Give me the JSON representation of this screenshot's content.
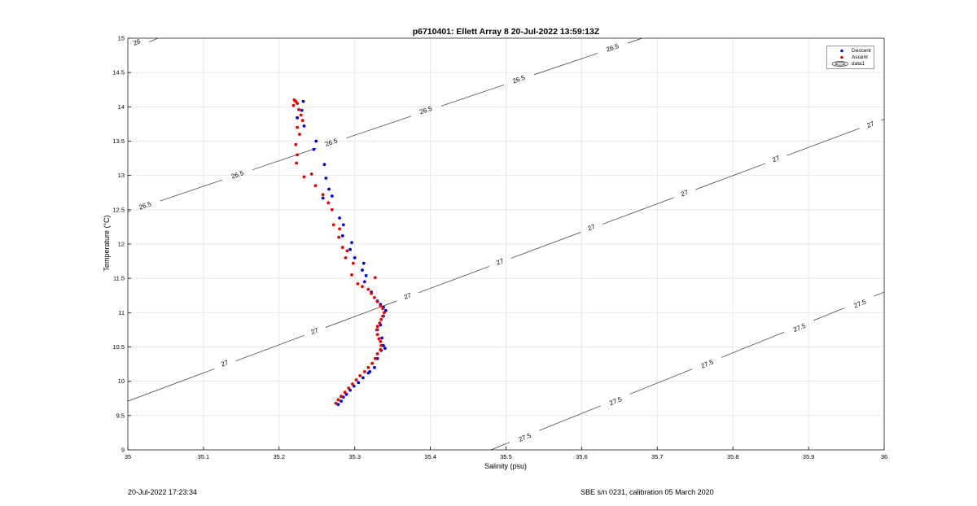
{
  "header": {
    "title": "p6710401: Ellett Array 8 20-Jul-2022 13:59:13Z"
  },
  "footer": {
    "left": "20-Jul-2022 17:23:34",
    "right": "SBE s/n 0231, calibration 05 March 2020"
  },
  "colors": {
    "descent": "#0000cc",
    "ascent": "#e00000",
    "contour": "#333333",
    "grid": "#e3e3e3"
  },
  "chart_data": {
    "type": "scatter",
    "title": "p6710401: Ellett Array 8 20-Jul-2022 13:59:13Z",
    "xlabel": "Salinity (psu)",
    "ylabel": "Temperature (°C)",
    "xlim": [
      35,
      36
    ],
    "ylim": [
      9,
      15
    ],
    "xticks": [
      "35",
      "35.1",
      "35.2",
      "35.3",
      "35.4",
      "35.5",
      "35.6",
      "35.7",
      "35.8",
      "35.9",
      "36"
    ],
    "yticks": [
      "9",
      "9.5",
      "10",
      "10.5",
      "11",
      "11.5",
      "12",
      "12.5",
      "13",
      "13.5",
      "14",
      "14.5",
      "15"
    ],
    "grid": true,
    "legend": {
      "placement": "top-right",
      "entries": [
        "Descent",
        "Ascent",
        "data1"
      ]
    },
    "contours": [
      {
        "level": "26",
        "points": [
          [
            35.0,
            14.82
          ],
          [
            35.04,
            15.0
          ]
        ],
        "labels": [
          [
            35.012,
            14.94
          ]
        ]
      },
      {
        "level": "26.5",
        "points": [
          [
            35.0,
            12.47
          ],
          [
            35.68,
            15.0
          ]
        ],
        "labels": [
          [
            35.023,
            12.56
          ],
          [
            35.145,
            13.01
          ],
          [
            35.269,
            13.48
          ],
          [
            35.394,
            13.95
          ],
          [
            35.517,
            14.4
          ],
          [
            35.641,
            14.86
          ]
        ]
      },
      {
        "level": "27",
        "points": [
          [
            35.0,
            9.71
          ],
          [
            36.0,
            13.82
          ]
        ],
        "labels": [
          [
            35.128,
            10.26
          ],
          [
            35.247,
            10.73
          ],
          [
            35.37,
            11.24
          ],
          [
            35.492,
            11.74
          ],
          [
            35.613,
            12.24
          ],
          [
            35.736,
            12.74
          ],
          [
            35.857,
            13.24
          ],
          [
            35.982,
            13.74
          ]
        ]
      },
      {
        "level": "27.5",
        "points": [
          [
            35.48,
            9.0
          ],
          [
            36.0,
            11.3
          ]
        ],
        "labels": [
          [
            35.525,
            9.18
          ],
          [
            35.645,
            9.71
          ],
          [
            35.766,
            10.25
          ],
          [
            35.888,
            10.78
          ],
          [
            35.968,
            11.13
          ]
        ]
      }
    ],
    "series": [
      {
        "name": "Descent",
        "x": [
          35.232,
          35.23,
          35.224,
          35.233,
          35.249,
          35.246,
          35.26,
          35.262,
          35.266,
          35.27,
          35.258,
          35.28,
          35.285,
          35.284,
          35.296,
          35.294,
          35.3,
          35.312,
          35.31,
          35.315,
          35.313,
          35.322,
          35.33,
          35.334,
          35.338,
          35.341,
          35.338,
          35.334,
          35.33,
          35.336,
          35.338,
          35.34,
          35.335,
          35.33,
          35.326,
          35.32,
          35.318,
          35.311,
          35.305,
          35.299,
          35.294,
          35.289,
          35.285,
          35.282,
          35.278
        ],
        "y": [
          14.08,
          13.95,
          13.84,
          13.72,
          13.5,
          13.38,
          13.16,
          12.96,
          12.8,
          12.7,
          12.67,
          12.38,
          12.28,
          12.12,
          12.02,
          11.92,
          11.8,
          11.72,
          11.62,
          11.54,
          11.45,
          11.3,
          11.17,
          11.12,
          11.08,
          11.03,
          10.95,
          10.82,
          10.75,
          10.63,
          10.52,
          10.48,
          10.45,
          10.33,
          10.2,
          10.14,
          10.12,
          10.05,
          9.98,
          9.93,
          9.87,
          9.81,
          9.77,
          9.71,
          9.66
        ]
      },
      {
        "name": "Ascent",
        "x": [
          35.22,
          35.222,
          35.224,
          35.219,
          35.226,
          35.229,
          35.231,
          35.224,
          35.227,
          35.222,
          35.224,
          35.223,
          35.233,
          35.243,
          35.248,
          35.258,
          35.265,
          35.27,
          35.272,
          35.28,
          35.279,
          35.284,
          35.29,
          35.288,
          35.298,
          35.296,
          35.304,
          35.31,
          35.318,
          35.322,
          35.326,
          35.33,
          35.334,
          35.337,
          35.339,
          35.337,
          35.335,
          35.333,
          35.33,
          35.329,
          35.33,
          35.332,
          35.334,
          35.335,
          35.334,
          35.33,
          35.327,
          35.323,
          35.318,
          35.313,
          35.307,
          35.302,
          35.297,
          35.292,
          35.287,
          35.282,
          35.278,
          35.275,
          35.327
        ],
        "y": [
          14.1,
          14.08,
          14.05,
          14.02,
          13.96,
          13.88,
          13.8,
          13.7,
          13.6,
          13.45,
          13.3,
          13.18,
          12.98,
          13.02,
          12.85,
          12.72,
          12.6,
          12.5,
          12.28,
          12.22,
          12.1,
          11.95,
          11.9,
          11.8,
          11.72,
          11.55,
          11.42,
          11.38,
          11.34,
          11.28,
          11.22,
          11.16,
          11.1,
          11.06,
          11.0,
          10.95,
          10.9,
          10.85,
          10.8,
          10.75,
          10.68,
          10.62,
          10.58,
          10.52,
          10.46,
          10.4,
          10.33,
          10.26,
          10.2,
          10.14,
          10.08,
          10.02,
          9.96,
          9.9,
          9.84,
          9.78,
          9.73,
          9.68,
          11.51
        ]
      }
    ]
  }
}
